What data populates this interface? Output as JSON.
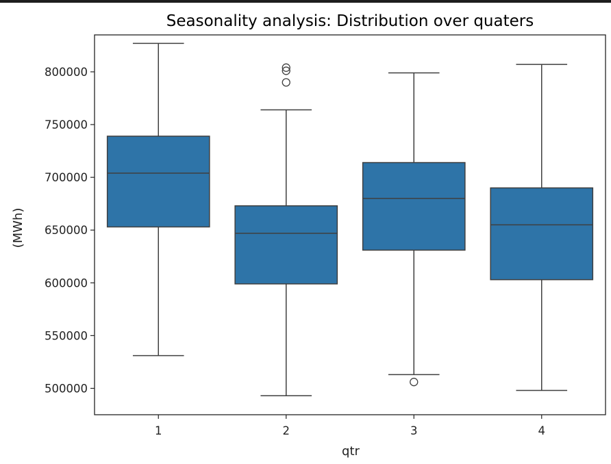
{
  "chart_data": {
    "type": "box",
    "title": "Seasonality analysis: Distribution over quaters",
    "xlabel": "qtr",
    "ylabel": "(MWh)",
    "categories": [
      "1",
      "2",
      "3",
      "4"
    ],
    "ylim": [
      475000,
      835000
    ],
    "yticks": [
      500000,
      550000,
      600000,
      650000,
      700000,
      750000,
      800000
    ],
    "ytick_labels": [
      "500000",
      "550000",
      "600000",
      "650000",
      "700000",
      "750000",
      "800000"
    ],
    "box_color": "#2e74a8",
    "edge_color": "#3f3f3f",
    "boxes": [
      {
        "category": "1",
        "whisker_low": 531000,
        "q1": 653000,
        "median": 704000,
        "q3": 739000,
        "whisker_high": 827000,
        "outliers": []
      },
      {
        "category": "2",
        "whisker_low": 493000,
        "q1": 599000,
        "median": 647000,
        "q3": 673000,
        "whisker_high": 764000,
        "outliers": [
          790000,
          801000,
          804000
        ]
      },
      {
        "category": "3",
        "whisker_low": 513000,
        "q1": 631000,
        "median": 680000,
        "q3": 714000,
        "whisker_high": 799000,
        "outliers": [
          506000
        ]
      },
      {
        "category": "4",
        "whisker_low": 498000,
        "q1": 603000,
        "median": 655000,
        "q3": 690000,
        "whisker_high": 807000,
        "outliers": []
      }
    ]
  }
}
